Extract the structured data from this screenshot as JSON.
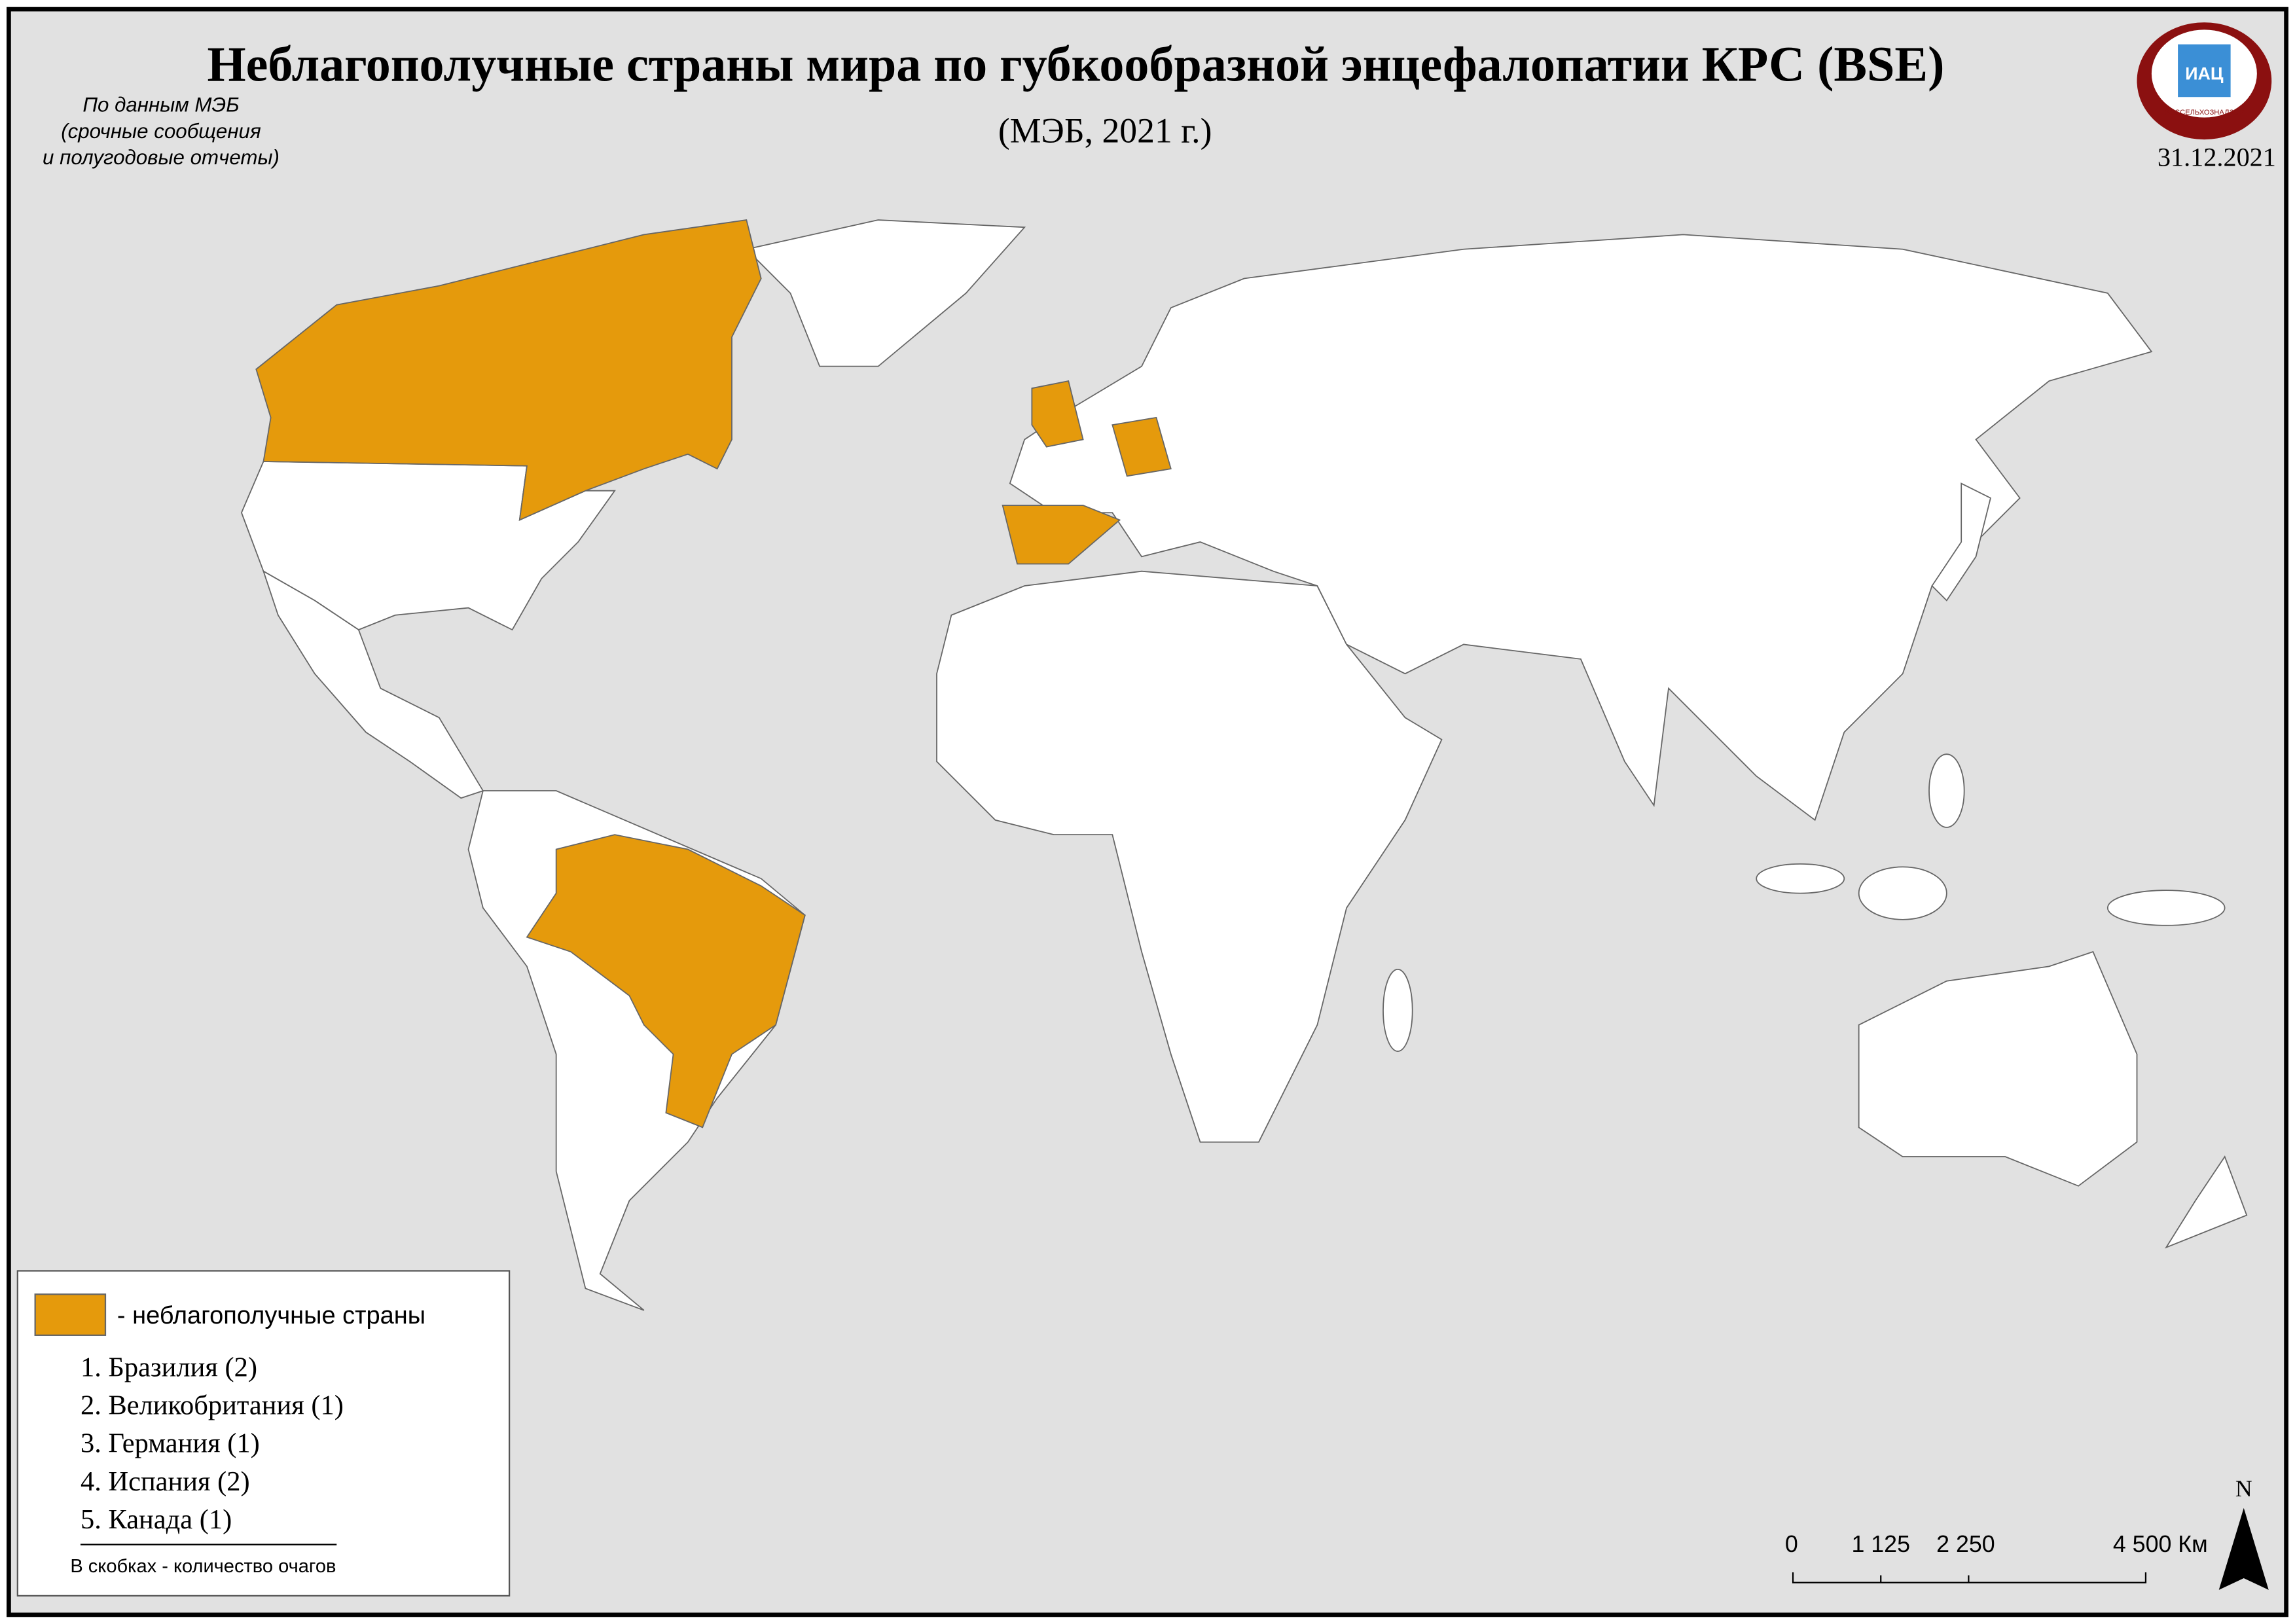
{
  "header": {
    "title": "Неблагополучные страны мира по губкообразной энцефалопатии КРС (BSE)",
    "subtitle": "(МЭБ, 2021 г.)",
    "source": [
      "По данным МЭБ",
      "(срочные сообщения",
      "и полугодовые отчеты)"
    ],
    "date": "31.12.2021",
    "logo": {
      "text": "ИАЦ",
      "caption": "РОССЕЛЬХОЗНАДЗОР"
    }
  },
  "legend": {
    "label": "- неблагополучные страны",
    "items": [
      "1. Бразилия (2)",
      "2. Великобритания (1)",
      "3. Германия (1)",
      "4. Испания (2)",
      "5. Канада (1)"
    ],
    "note": "В скобках - количество очагов"
  },
  "scale": {
    "labels": [
      "0",
      "1 125",
      "2 250",
      "4 500 Км"
    ],
    "north": "N"
  }
}
